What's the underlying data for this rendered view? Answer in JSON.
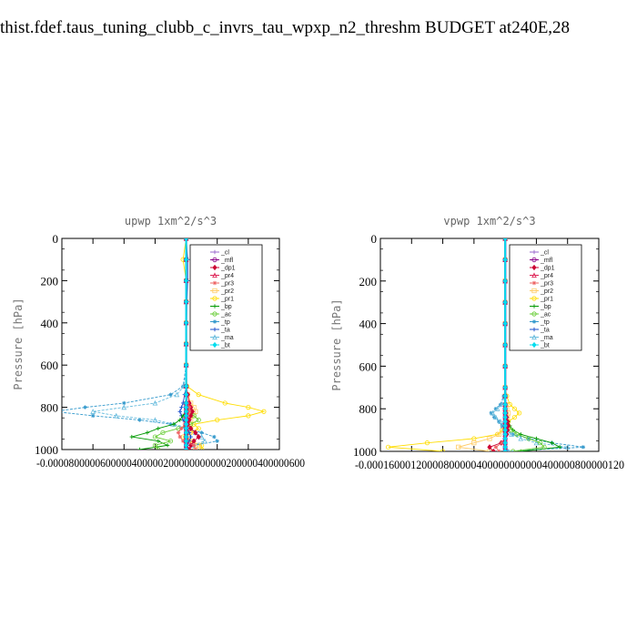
{
  "title": "thist.fdef.taus_tuning_clubb_c_invrs_tau_wpxp_n2_threshm  BUDGET at240E,28",
  "colors": {
    "_cl": "#9966cc",
    "_mfl": "#880088",
    "_dp1": "#cc0033",
    "_pr4": "#dd2255",
    "_pr3": "#ee6666",
    "_pr2": "#ffcc66",
    "_pr1": "#ffdd00",
    "_bp": "#009900",
    "_ac": "#66cc33",
    "_tp": "#3399cc",
    "_ta": "#1a4dcc",
    "_ma": "#66bbdd",
    "_bt": "#00ddee"
  },
  "chart_data": [
    {
      "type": "line",
      "title": "upwp   1xm^2/s^3",
      "ylabel": "Pressure [hPa]",
      "ylim": [
        1000,
        0
      ],
      "yticks": [
        0,
        200,
        400,
        600,
        800,
        1000
      ],
      "xlim": [
        -8e-05,
        6e-05
      ],
      "xtick_text": "-0.0000800000600000400000200000000000200000400000600",
      "legend": [
        "_cl",
        "_mfl",
        "_dp1",
        "_pr4",
        "_pr3",
        "_pr2",
        "_pr1",
        "_bp",
        "_ac",
        "_tp",
        "_ta",
        "_ma",
        "_bt"
      ],
      "pressure": [
        0,
        100,
        200,
        300,
        400,
        500,
        600,
        700,
        740,
        780,
        800,
        820,
        840,
        860,
        880,
        900,
        920,
        940,
        960,
        980,
        1000
      ],
      "series": [
        {
          "name": "_pr1",
          "values": [
            0,
            -2e-06,
            0,
            0,
            0,
            0,
            0,
            5e-07,
            8e-06,
            2.5e-05,
            4e-05,
            5e-05,
            4e-05,
            2e-05,
            5e-06,
            8e-06,
            3e-06,
            -2e-06,
            2e-06,
            1e-05,
            1e-05
          ]
        },
        {
          "name": "_pr2",
          "values": [
            0,
            0,
            0,
            0,
            0,
            0,
            0,
            0,
            1e-06,
            3e-06,
            5e-06,
            6e-06,
            5e-06,
            3e-06,
            2e-06,
            3e-06,
            2e-06,
            1e-06,
            3e-06,
            8e-06,
            6e-06
          ]
        },
        {
          "name": "_tp",
          "values": [
            0,
            0,
            0,
            0,
            0,
            0,
            0,
            -2e-06,
            -1e-05,
            -4e-05,
            -6.5e-05,
            -8.5e-05,
            -6e-05,
            -3e-05,
            -1e-05,
            0,
            1e-05,
            1.8e-05,
            2e-05,
            5e-06,
            0
          ]
        },
        {
          "name": "_ma",
          "values": [
            0,
            0,
            0,
            0,
            0,
            0,
            0,
            -1.5e-06,
            -6e-06,
            -2e-05,
            -4e-05,
            -6e-05,
            -4.5e-05,
            -2e-05,
            -8e-06,
            2e-06,
            6e-06,
            1e-05,
            1.2e-05,
            4e-06,
            0
          ]
        },
        {
          "name": "_ta",
          "values": [
            0,
            1e-06,
            1e-06,
            5e-07,
            3e-07,
            0,
            0,
            0,
            -1e-06,
            -2e-06,
            -3e-06,
            -4e-06,
            -3e-06,
            -2e-06,
            0,
            1e-06,
            2e-06,
            3e-06,
            2e-06,
            1e-06,
            0
          ]
        },
        {
          "name": "_bp",
          "values": [
            0,
            0,
            0,
            0,
            0,
            0,
            0,
            0,
            0,
            0,
            0,
            0,
            -2e-06,
            -4e-06,
            -8e-06,
            -1.8e-05,
            -2.5e-05,
            -3.5e-05,
            -1.8e-05,
            -1.2e-05,
            -3e-05
          ]
        },
        {
          "name": "_ac",
          "values": [
            0,
            0,
            0,
            0,
            0,
            0,
            0,
            0,
            0,
            0,
            1e-06,
            2e-06,
            5e-06,
            8e-06,
            3e-06,
            -5e-06,
            -1.5e-05,
            -2e-05,
            -1e-05,
            -2e-05,
            -1.8e-05
          ]
        },
        {
          "name": "_dp1",
          "values": [
            0,
            0,
            0,
            0,
            0,
            0,
            0,
            0,
            1e-06,
            2e-06,
            3e-06,
            4e-06,
            3e-06,
            2e-06,
            1e-06,
            3e-06,
            6e-06,
            8e-06,
            5e-06,
            3e-06,
            2e-06
          ]
        },
        {
          "name": "_pr3",
          "values": [
            0,
            0,
            0,
            0,
            0,
            0,
            0,
            0,
            0,
            1e-06,
            2e-06,
            2e-06,
            1e-06,
            0,
            -1e-06,
            -3e-06,
            -5e-06,
            -4e-06,
            -2e-06,
            5e-06,
            6e-06
          ]
        },
        {
          "name": "_pr4",
          "values": [
            0,
            0,
            0,
            0,
            0,
            0,
            0,
            0,
            0,
            0,
            0,
            0,
            0,
            0,
            0,
            0,
            0,
            0,
            0,
            0,
            0
          ]
        },
        {
          "name": "_mfl",
          "values": [
            0,
            0,
            0,
            0,
            0,
            0,
            0,
            0,
            0,
            0,
            0,
            0,
            0,
            0,
            0,
            0,
            0,
            0,
            0,
            0,
            0
          ]
        },
        {
          "name": "_cl",
          "values": [
            0,
            0,
            0,
            0,
            0,
            0,
            0,
            0,
            0,
            0,
            0,
            0,
            0,
            0,
            0,
            0,
            0,
            0,
            0,
            0,
            0
          ]
        },
        {
          "name": "_bt",
          "values": [
            0,
            0,
            0,
            0,
            0,
            0,
            0,
            0,
            0,
            0,
            0,
            0,
            0,
            0,
            0,
            0,
            0,
            0,
            0,
            0,
            0
          ]
        }
      ]
    },
    {
      "type": "line",
      "title": "vpwp   1xm^2/s^3",
      "ylabel": "Pressure [hPa]",
      "ylim": [
        1000,
        0
      ],
      "yticks": [
        0,
        200,
        400,
        600,
        800,
        1000
      ],
      "xlim": [
        -0.00016,
        0.00012
      ],
      "xtick_text": "-0.00016000120000800000400000000000400000800000120",
      "legend": [
        "_cl",
        "_mfl",
        "_dp1",
        "_pr4",
        "_pr3",
        "_pr2",
        "_pr1",
        "_bp",
        "_ac",
        "_tp",
        "_ta",
        "_ma",
        "_bt"
      ],
      "pressure": [
        0,
        100,
        200,
        300,
        400,
        500,
        600,
        700,
        740,
        780,
        800,
        820,
        840,
        860,
        880,
        900,
        920,
        940,
        960,
        980,
        1000
      ],
      "series": [
        {
          "name": "_pr1",
          "values": [
            0,
            0,
            0,
            0,
            0,
            0,
            0,
            0,
            2e-06,
            6e-06,
            1.2e-05,
            1.8e-05,
            1.2e-05,
            4e-06,
            0,
            -4e-06,
            -1e-05,
            -4e-05,
            -0.0001,
            -0.00015,
            -8e-05
          ]
        },
        {
          "name": "_pr2",
          "values": [
            0,
            0,
            0,
            0,
            0,
            0,
            0,
            0,
            0,
            1e-06,
            2e-06,
            4e-06,
            3e-06,
            1e-06,
            0,
            -2e-06,
            -8e-06,
            -2e-05,
            -4e-05,
            -6e-05,
            -2e-05
          ]
        },
        {
          "name": "_tp",
          "values": [
            0,
            0,
            0,
            0,
            0,
            0,
            0,
            0,
            -2e-06,
            -6e-06,
            -1.2e-05,
            -1.8e-05,
            -1.4e-05,
            -8e-06,
            -4e-06,
            0,
            1e-05,
            3e-05,
            6e-05,
            0.0001,
            4e-06
          ]
        },
        {
          "name": "_ma",
          "values": [
            0,
            0,
            0,
            0,
            0,
            0,
            0,
            0,
            -1e-06,
            -4e-06,
            -1e-05,
            -1.6e-05,
            -1.2e-05,
            -6e-06,
            -3e-06,
            0,
            8e-06,
            2e-05,
            4e-05,
            8e-05,
            3e-06
          ]
        },
        {
          "name": "_bp",
          "values": [
            0,
            0,
            0,
            0,
            0,
            0,
            0,
            0,
            0,
            0,
            0,
            0,
            2e-06,
            4e-06,
            6e-06,
            1e-05,
            2e-05,
            4e-05,
            6e-05,
            7e-05,
            2e-05
          ]
        },
        {
          "name": "_ac",
          "values": [
            0,
            0,
            0,
            0,
            0,
            0,
            0,
            0,
            0,
            0,
            0,
            0,
            1e-06,
            2e-06,
            4e-06,
            8e-06,
            1.5e-05,
            3e-05,
            4.5e-05,
            5e-05,
            1e-05
          ]
        },
        {
          "name": "_dp1",
          "values": [
            0,
            0,
            0,
            0,
            0,
            0,
            0,
            0,
            0,
            0,
            0,
            1e-06,
            2e-06,
            3e-06,
            4e-06,
            3e-06,
            2e-06,
            0,
            -5e-06,
            -2e-05,
            -1.5e-05
          ]
        },
        {
          "name": "_pr3",
          "values": [
            0,
            0,
            0,
            0,
            0,
            0,
            0,
            0,
            0,
            0,
            0,
            0,
            0,
            0,
            0,
            0,
            0,
            0,
            -4e-06,
            -1.2e-05,
            -8e-06
          ]
        },
        {
          "name": "_ta",
          "values": [
            0,
            0,
            0,
            0,
            0,
            0,
            0,
            0,
            0,
            0,
            0,
            0,
            0,
            0,
            0,
            0,
            0,
            0,
            0,
            0,
            0
          ]
        },
        {
          "name": "_pr4",
          "values": [
            0,
            0,
            0,
            0,
            0,
            0,
            0,
            0,
            0,
            0,
            0,
            0,
            0,
            0,
            0,
            0,
            0,
            0,
            0,
            0,
            0
          ]
        },
        {
          "name": "_mfl",
          "values": [
            0,
            0,
            0,
            0,
            0,
            0,
            0,
            0,
            0,
            0,
            0,
            0,
            0,
            0,
            0,
            0,
            0,
            0,
            0,
            0,
            0
          ]
        },
        {
          "name": "_cl",
          "values": [
            0,
            0,
            0,
            0,
            0,
            0,
            0,
            0,
            0,
            0,
            0,
            0,
            0,
            0,
            0,
            0,
            0,
            0,
            0,
            0,
            0
          ]
        },
        {
          "name": "_bt",
          "values": [
            0,
            0,
            0,
            0,
            0,
            0,
            0,
            0,
            0,
            0,
            0,
            0,
            0,
            0,
            0,
            0,
            0,
            0,
            0,
            0,
            0
          ]
        }
      ]
    }
  ]
}
